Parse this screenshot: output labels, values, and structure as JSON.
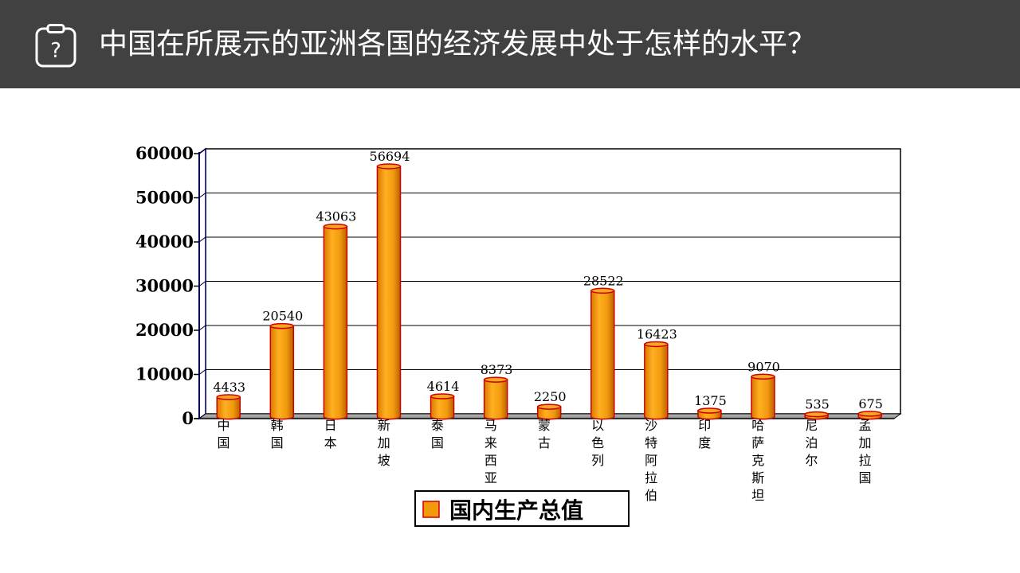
{
  "header": {
    "title": "中国在所展示的亚洲各国的经济发展中处于怎样的水平？",
    "icon": "question-clipboard-icon"
  },
  "colors": {
    "header_bg": "#414141",
    "bar_fill": "#f29a0e",
    "bar_edge": "#d00000"
  },
  "chart_data": {
    "type": "bar",
    "categories": [
      "中国",
      "韩国",
      "日本",
      "新加坡",
      "泰国",
      "马来西亚",
      "蒙古",
      "以色列",
      "沙特阿拉伯",
      "印度",
      "哈萨克斯坦",
      "尼泊尔",
      "孟加拉国"
    ],
    "series": [
      {
        "name": "国内生产总值",
        "values": [
          4433,
          20540,
          43063,
          56694,
          4614,
          8373,
          2250,
          28522,
          16423,
          1375,
          9070,
          535,
          675
        ]
      }
    ],
    "ylim": [
      0,
      60000
    ],
    "yticks": [
      0,
      10000,
      20000,
      30000,
      40000,
      50000,
      60000
    ],
    "grid": true,
    "legend": "bottom",
    "style": "3d-cylinder"
  }
}
